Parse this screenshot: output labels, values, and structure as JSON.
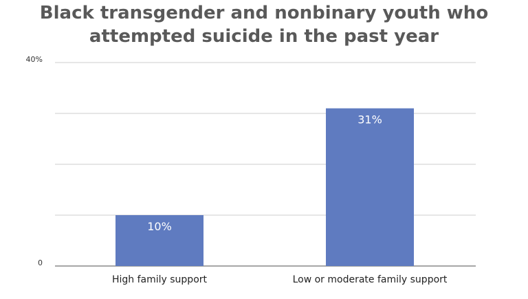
{
  "chart_data": {
    "type": "bar",
    "title_lines": [
      "Black transgender and nonbinary youth who",
      "attempted suicide in the past year"
    ],
    "categories": [
      "High family support",
      "Low or moderate family support"
    ],
    "values": [
      10,
      31
    ],
    "data_labels": [
      "10%",
      "31%"
    ],
    "ylim": [
      0,
      40
    ],
    "y_ticks_labeled": [
      {
        "value": 0,
        "label": "0"
      },
      {
        "value": 40,
        "label": "40%"
      }
    ],
    "gridlines": [
      10,
      20,
      30,
      40
    ],
    "grid": true,
    "legend": "none",
    "xlabel": "",
    "ylabel": ""
  },
  "colors": {
    "bar": "#5f7bc0",
    "grid": "#cccccc",
    "axis": "#888888",
    "title": "#595959"
  }
}
